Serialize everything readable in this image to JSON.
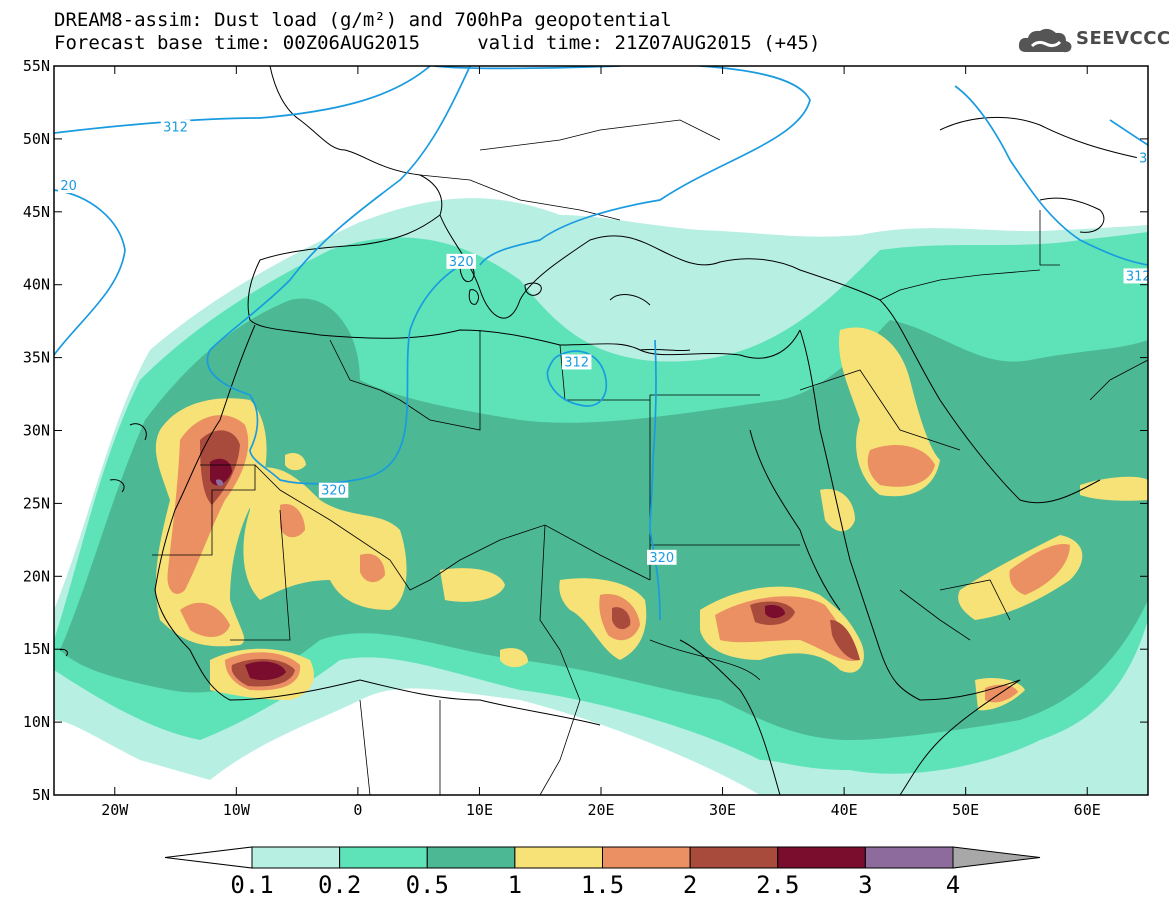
{
  "title": {
    "line1": "DREAM8-assim: Dust load (g/m²) and 700hPa geopotential",
    "line2": "Forecast base time: 00Z06AUG2015     valid time: 21Z07AUG2015 (+45)"
  },
  "logo": {
    "icon": "cloud-icon",
    "text": "SEEVCCC"
  },
  "axes": {
    "lon_range": [
      -25,
      65
    ],
    "lat_range": [
      5,
      55
    ],
    "lon_ticks": [
      {
        "value": -20,
        "label": "20W"
      },
      {
        "value": -10,
        "label": "10W"
      },
      {
        "value": 0,
        "label": "0"
      },
      {
        "value": 10,
        "label": "10E"
      },
      {
        "value": 20,
        "label": "20E"
      },
      {
        "value": 30,
        "label": "30E"
      },
      {
        "value": 40,
        "label": "40E"
      },
      {
        "value": 50,
        "label": "50E"
      },
      {
        "value": 60,
        "label": "60E"
      }
    ],
    "lat_ticks": [
      {
        "value": 55,
        "label": "55N"
      },
      {
        "value": 50,
        "label": "50N"
      },
      {
        "value": 45,
        "label": "45N"
      },
      {
        "value": 40,
        "label": "40N"
      },
      {
        "value": 35,
        "label": "35N"
      },
      {
        "value": 30,
        "label": "30N"
      },
      {
        "value": 25,
        "label": "25N"
      },
      {
        "value": 20,
        "label": "20N"
      },
      {
        "value": 15,
        "label": "15N"
      },
      {
        "value": 10,
        "label": "10N"
      },
      {
        "value": 5,
        "label": "5N"
      }
    ]
  },
  "colorbar": {
    "labels": [
      "0.1",
      "0.2",
      "0.5",
      "1",
      "1.5",
      "2",
      "2.5",
      "3",
      "4"
    ],
    "colors": [
      "#ffffff",
      "#b8efe3",
      "#5de3b7",
      "#4db894",
      "#f7e278",
      "#eb9062",
      "#a84a3c",
      "#7a0d2e",
      "#8d6c9d",
      "#a8a8a8"
    ]
  },
  "contours": {
    "color": "#1a9be0",
    "labels": [
      {
        "text": "312",
        "lon": -15,
        "lat": 50.7
      },
      {
        "text": "20",
        "lon": -23.8,
        "lat": 46.7
      },
      {
        "text": "320",
        "lon": 8.5,
        "lat": 41.5
      },
      {
        "text": "312",
        "lon": 18,
        "lat": 34.6
      },
      {
        "text": "320",
        "lon": -2,
        "lat": 25.8
      },
      {
        "text": "320",
        "lon": 25,
        "lat": 21.2
      },
      {
        "text": "312",
        "lon": 64.2,
        "lat": 40.5
      },
      {
        "text": "3",
        "lon": 64.6,
        "lat": 48.6
      }
    ]
  }
}
